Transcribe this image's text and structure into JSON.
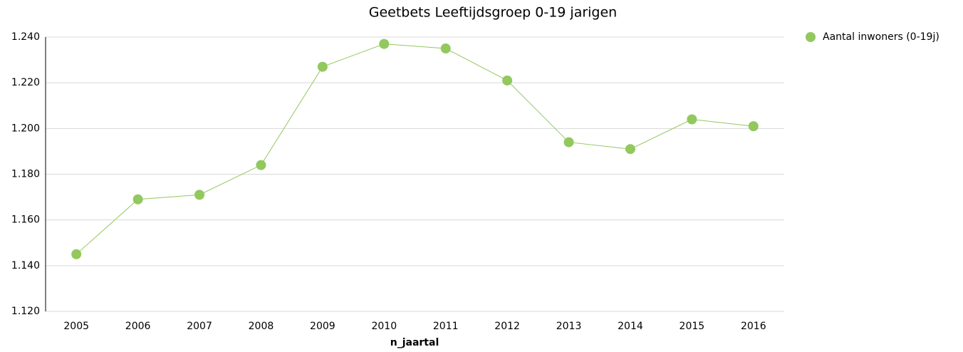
{
  "chart_data": {
    "type": "line",
    "title": "Geetbets  Leeftijdsgroep 0-19 jarigen",
    "x_label": "n_jaartal",
    "categories": [
      "2005",
      "2006",
      "2007",
      "2008",
      "2009",
      "2010",
      "2011",
      "2012",
      "2013",
      "2014",
      "2015",
      "2016"
    ],
    "series": [
      {
        "name": "Aantal inwoners (0-19j)",
        "color": "#92c85e",
        "values": [
          1145,
          1169,
          1171,
          1184,
          1227,
          1237,
          1235,
          1221,
          1194,
          1191,
          1204,
          1201
        ]
      }
    ],
    "ylim": [
      1120,
      1240
    ],
    "yticks": [
      {
        "value": 1120,
        "label": "1.120"
      },
      {
        "value": 1140,
        "label": "1.140"
      },
      {
        "value": 1160,
        "label": "1.160"
      },
      {
        "value": 1180,
        "label": "1.180"
      },
      {
        "value": 1200,
        "label": "1.200"
      },
      {
        "value": 1220,
        "label": "1.220"
      },
      {
        "value": 1240,
        "label": "1.240"
      }
    ],
    "grid": true,
    "legend": "right"
  }
}
